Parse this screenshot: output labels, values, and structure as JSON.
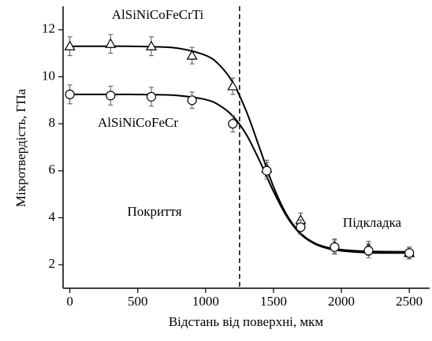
{
  "chart_data": {
    "type": "scatter",
    "x_label": "Відстань від поверхні, мкм",
    "y_label": "Мікротвердість, ГПа",
    "x": [
      0,
      300,
      600,
      900,
      1200,
      1450,
      1700,
      1950,
      2200,
      2500
    ],
    "series": [
      {
        "name": "AlSiNiCoFeCrTi",
        "marker": "triangle",
        "color": "#000000",
        "values": [
          11.3,
          11.4,
          11.3,
          10.9,
          9.6,
          6.1,
          3.9,
          2.8,
          2.7,
          2.5
        ],
        "errors": [
          0.4,
          0.4,
          0.4,
          0.35,
          0.35,
          0.35,
          0.3,
          0.3,
          0.3,
          0.25
        ],
        "fit_x": [
          0,
          200,
          400,
          600,
          800,
          1000,
          1100,
          1200,
          1300,
          1400,
          1500,
          1600,
          1700,
          1800,
          1900,
          2000,
          2200,
          2500
        ],
        "fit": [
          11.3,
          11.3,
          11.3,
          11.28,
          11.21,
          10.91,
          10.51,
          9.76,
          8.53,
          6.93,
          5.32,
          4.1,
          3.34,
          2.93,
          2.73,
          2.64,
          2.57,
          2.55
        ]
      },
      {
        "name": "AlSiNiCoFeCr",
        "marker": "circle",
        "color": "#000000",
        "values": [
          9.25,
          9.2,
          9.15,
          9.0,
          8.0,
          6.0,
          3.6,
          2.75,
          2.6,
          2.5
        ],
        "errors": [
          0.4,
          0.4,
          0.4,
          0.35,
          0.35,
          0.35,
          0.3,
          0.3,
          0.3,
          0.25
        ],
        "fit_x": [
          0,
          200,
          400,
          600,
          800,
          1000,
          1100,
          1200,
          1300,
          1400,
          1500,
          1600,
          1700,
          1800,
          1900,
          2000,
          2200,
          2500
        ],
        "fit": [
          9.25,
          9.25,
          9.25,
          9.24,
          9.2,
          9.03,
          8.79,
          8.33,
          7.54,
          6.39,
          5.12,
          4.03,
          3.3,
          2.9,
          2.69,
          2.59,
          2.51,
          2.5
        ]
      }
    ],
    "vline": 1250,
    "annotations": [
      "Покриття",
      "Підкладка"
    ],
    "xlim": [
      -50,
      2650
    ],
    "xticks": [
      0,
      500,
      1000,
      1500,
      2000,
      2500
    ],
    "ylim": [
      1,
      13
    ],
    "yticks": [
      2,
      4,
      6,
      8,
      10,
      12
    ]
  }
}
